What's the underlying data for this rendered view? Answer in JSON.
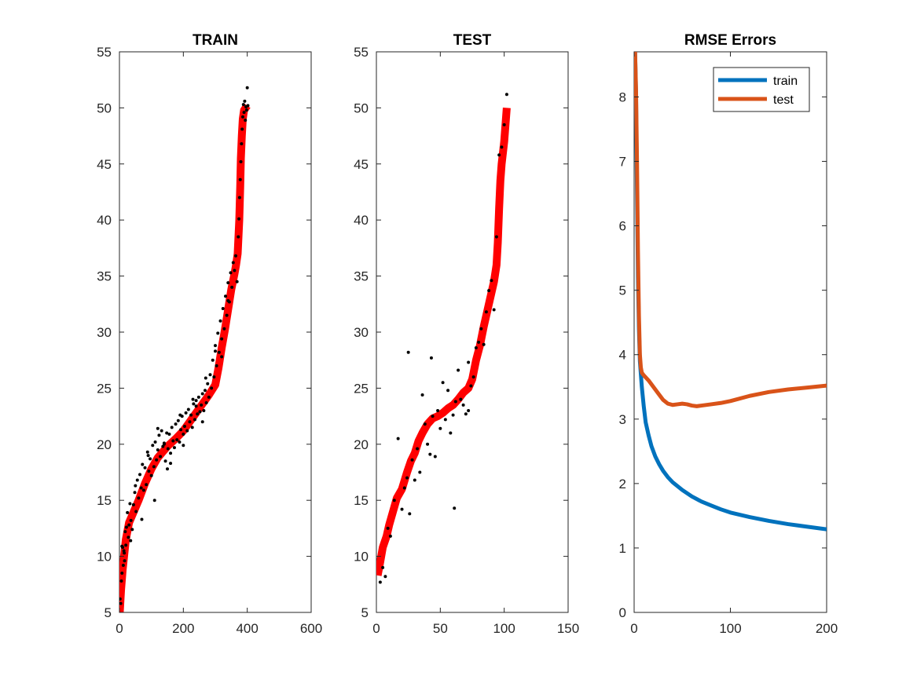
{
  "chart_data": [
    {
      "type": "scatter",
      "title": "TRAIN",
      "xlabel": "",
      "ylabel": "",
      "xlim": [
        0,
        600
      ],
      "ylim": [
        5,
        55
      ],
      "xticks": [
        0,
        200,
        400,
        600
      ],
      "yticks": [
        5,
        10,
        15,
        20,
        25,
        30,
        35,
        40,
        45,
        50,
        55
      ],
      "grid": false,
      "colors": {
        "points": "#000000",
        "line": "#ff0000"
      },
      "fit_line": {
        "x": [
          1,
          5,
          10,
          20,
          30,
          45,
          60,
          80,
          100,
          120,
          150,
          180,
          200,
          220,
          240,
          260,
          280,
          300,
          310,
          320,
          330,
          340,
          350,
          360,
          365,
          370,
          375,
          378,
          380,
          383,
          386,
          390,
          395,
          400
        ],
        "y": [
          5.0,
          7.0,
          8.8,
          11.5,
          13.0,
          14.0,
          15.0,
          16.5,
          17.8,
          18.8,
          19.8,
          20.6,
          21.2,
          22.0,
          22.8,
          23.6,
          24.4,
          25.3,
          26.8,
          28.6,
          30.2,
          32.0,
          33.8,
          35.2,
          36.0,
          37.0,
          40.0,
          43.0,
          45.5,
          47.5,
          49.0,
          49.8,
          50.0,
          50.2
        ]
      },
      "points": {
        "x": [
          2,
          4,
          6,
          8,
          10,
          12,
          14,
          16,
          18,
          20,
          22,
          25,
          28,
          30,
          33,
          36,
          40,
          44,
          48,
          52,
          56,
          60,
          64,
          68,
          72,
          76,
          80,
          84,
          88,
          92,
          96,
          100,
          104,
          108,
          112,
          116,
          120,
          124,
          128,
          132,
          136,
          140,
          144,
          148,
          152,
          156,
          160,
          164,
          168,
          172,
          176,
          180,
          184,
          188,
          192,
          196,
          200,
          204,
          208,
          212,
          216,
          220,
          224,
          228,
          232,
          236,
          240,
          244,
          248,
          252,
          256,
          260,
          264,
          268,
          272,
          276,
          280,
          284,
          288,
          292,
          296,
          300,
          304,
          308,
          312,
          316,
          320,
          324,
          328,
          332,
          336,
          340,
          344,
          348,
          352,
          356,
          360,
          364,
          368,
          372,
          374,
          376,
          378,
          380,
          382,
          384,
          386,
          388,
          390,
          392,
          394,
          396,
          398,
          400,
          402,
          50,
          90,
          120,
          150,
          190,
          230,
          270,
          320,
          200,
          160,
          110,
          70,
          35,
          15,
          8,
          260,
          300,
          340,
          240,
          140
        ],
        "y": [
          6.2,
          5.8,
          7.8,
          8.5,
          10.8,
          9.2,
          10.5,
          9.6,
          12.2,
          11.0,
          12.6,
          13.9,
          11.7,
          12.8,
          14.7,
          13.2,
          12.4,
          14.6,
          15.7,
          14.0,
          16.8,
          15.2,
          17.3,
          16.1,
          18.2,
          15.9,
          17.9,
          16.4,
          19.3,
          17.6,
          18.7,
          17.2,
          19.9,
          18.0,
          20.2,
          18.6,
          19.5,
          20.8,
          18.9,
          21.2,
          19.8,
          20.0,
          18.5,
          21.0,
          19.6,
          20.9,
          19.2,
          21.5,
          20.3,
          19.7,
          21.8,
          20.4,
          22.1,
          20.2,
          21.3,
          22.5,
          20.9,
          21.6,
          22.8,
          21.2,
          23.1,
          22.0,
          22.6,
          21.5,
          23.6,
          22.2,
          23.9,
          22.7,
          24.2,
          22.9,
          23.5,
          24.5,
          23.0,
          24.8,
          23.7,
          25.4,
          24.2,
          26.2,
          25.0,
          27.5,
          26.0,
          28.8,
          27.0,
          29.9,
          28.2,
          31.0,
          29.4,
          32.1,
          30.3,
          33.2,
          31.5,
          34.4,
          32.7,
          35.3,
          34.0,
          36.2,
          35.5,
          36.8,
          34.5,
          38.5,
          40.1,
          42.0,
          43.6,
          45.2,
          46.8,
          48.1,
          49.2,
          50.3,
          49.6,
          50.6,
          48.9,
          50.1,
          49.8,
          51.8,
          50.2,
          16.3,
          19.0,
          21.4,
          17.8,
          22.6,
          24.0,
          25.9,
          27.8,
          19.9,
          18.3,
          15.0,
          13.3,
          11.4,
          10.3,
          10.9,
          22.0,
          28.3,
          32.8,
          23.4,
          20.1
        ]
      }
    },
    {
      "type": "scatter",
      "title": "TEST",
      "xlabel": "",
      "ylabel": "",
      "xlim": [
        0,
        150
      ],
      "ylim": [
        5,
        55
      ],
      "xticks": [
        0,
        50,
        100,
        150
      ],
      "yticks": [
        5,
        10,
        15,
        20,
        25,
        30,
        35,
        40,
        45,
        50,
        55
      ],
      "grid": false,
      "colors": {
        "points": "#000000",
        "line": "#ff0000"
      },
      "fit_line": {
        "x": [
          1,
          3,
          5,
          8,
          10,
          13,
          16,
          20,
          24,
          27,
          30,
          33,
          36,
          40,
          44,
          48,
          52,
          56,
          60,
          64,
          68,
          72,
          75,
          78,
          81,
          84,
          87,
          90,
          92,
          94,
          95,
          96,
          97,
          98,
          100,
          102
        ],
        "y": [
          8.3,
          9.5,
          10.8,
          11.8,
          12.8,
          14.0,
          15.2,
          16.0,
          17.5,
          18.5,
          19.2,
          20.3,
          21.0,
          21.8,
          22.3,
          22.5,
          22.8,
          23.2,
          23.5,
          24.0,
          24.6,
          25.0,
          25.8,
          27.5,
          28.8,
          30.5,
          32.0,
          33.5,
          34.5,
          36.0,
          38.0,
          41.0,
          43.5,
          45.0,
          47.0,
          50.0
        ]
      },
      "points": {
        "x": [
          3,
          5,
          7,
          9,
          11,
          14,
          17,
          20,
          22,
          24,
          26,
          28,
          30,
          32,
          34,
          36,
          38,
          40,
          42,
          44,
          46,
          48,
          50,
          52,
          54,
          56,
          58,
          60,
          62,
          64,
          66,
          68,
          70,
          72,
          74,
          76,
          78,
          80,
          82,
          84,
          86,
          88,
          90,
          92,
          94,
          96,
          98,
          100,
          102,
          25,
          43,
          61,
          72
        ],
        "y": [
          7.7,
          9.0,
          8.2,
          12.5,
          11.8,
          15.0,
          20.5,
          14.2,
          16.1,
          17.0,
          13.8,
          18.6,
          16.8,
          19.6,
          17.5,
          24.4,
          21.8,
          20.0,
          19.1,
          22.5,
          18.9,
          23.0,
          21.4,
          25.5,
          22.2,
          24.8,
          21.0,
          22.6,
          23.8,
          26.6,
          24.0,
          23.5,
          22.7,
          27.3,
          25.2,
          26.0,
          28.6,
          29.1,
          30.3,
          28.9,
          31.8,
          33.7,
          34.6,
          32.0,
          38.5,
          45.8,
          46.5,
          48.5,
          51.2,
          28.2,
          27.7,
          14.3,
          23.0
        ]
      }
    },
    {
      "type": "line",
      "title": "RMSE Errors",
      "xlabel": "",
      "ylabel": "",
      "xlim": [
        0,
        200
      ],
      "ylim": [
        0,
        8.7
      ],
      "xticks": [
        0,
        100,
        200
      ],
      "yticks": [
        0,
        1,
        2,
        3,
        4,
        5,
        6,
        7,
        8
      ],
      "grid": false,
      "legend": "top-right",
      "series": [
        {
          "name": "train",
          "color": "#0072BD",
          "x": [
            1,
            2,
            3,
            4,
            5,
            6,
            8,
            10,
            12,
            15,
            18,
            22,
            26,
            30,
            35,
            40,
            50,
            60,
            70,
            80,
            90,
            100,
            120,
            140,
            160,
            180,
            200
          ],
          "y": [
            8.7,
            8.0,
            6.5,
            5.2,
            4.4,
            3.9,
            3.5,
            3.2,
            2.95,
            2.75,
            2.58,
            2.42,
            2.3,
            2.2,
            2.1,
            2.02,
            1.9,
            1.8,
            1.72,
            1.66,
            1.6,
            1.55,
            1.48,
            1.42,
            1.37,
            1.33,
            1.29
          ]
        },
        {
          "name": "test",
          "color": "#D95319",
          "x": [
            1,
            2,
            3,
            4,
            5,
            6,
            7,
            8,
            10,
            15,
            20,
            25,
            30,
            35,
            40,
            45,
            50,
            55,
            60,
            65,
            70,
            80,
            90,
            100,
            120,
            140,
            160,
            180,
            200
          ],
          "y": [
            8.7,
            8.1,
            7.0,
            5.6,
            4.6,
            4.0,
            3.8,
            3.72,
            3.68,
            3.6,
            3.5,
            3.4,
            3.3,
            3.24,
            3.22,
            3.23,
            3.24,
            3.23,
            3.21,
            3.2,
            3.21,
            3.23,
            3.25,
            3.28,
            3.36,
            3.42,
            3.46,
            3.49,
            3.52
          ]
        }
      ]
    }
  ]
}
